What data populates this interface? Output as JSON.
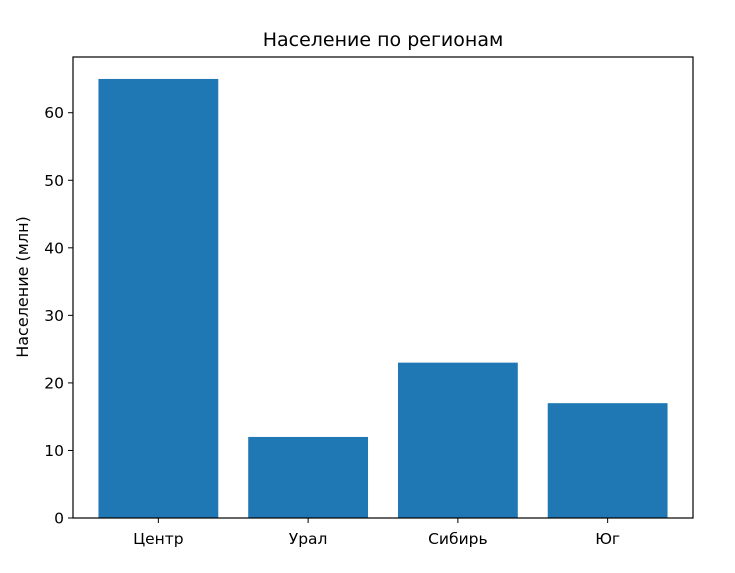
{
  "chart_data": {
    "type": "bar",
    "title": "Население по регионам",
    "xlabel": "",
    "ylabel": "Население (млн)",
    "categories": [
      "Центр",
      "Урал",
      "Сибирь",
      "Юг"
    ],
    "values": [
      65,
      12,
      23,
      17
    ],
    "ylim": [
      0,
      68.25
    ],
    "yticks": [
      0,
      10,
      20,
      30,
      40,
      50,
      60
    ],
    "grid": false,
    "bar_color": "#1f77b4"
  }
}
